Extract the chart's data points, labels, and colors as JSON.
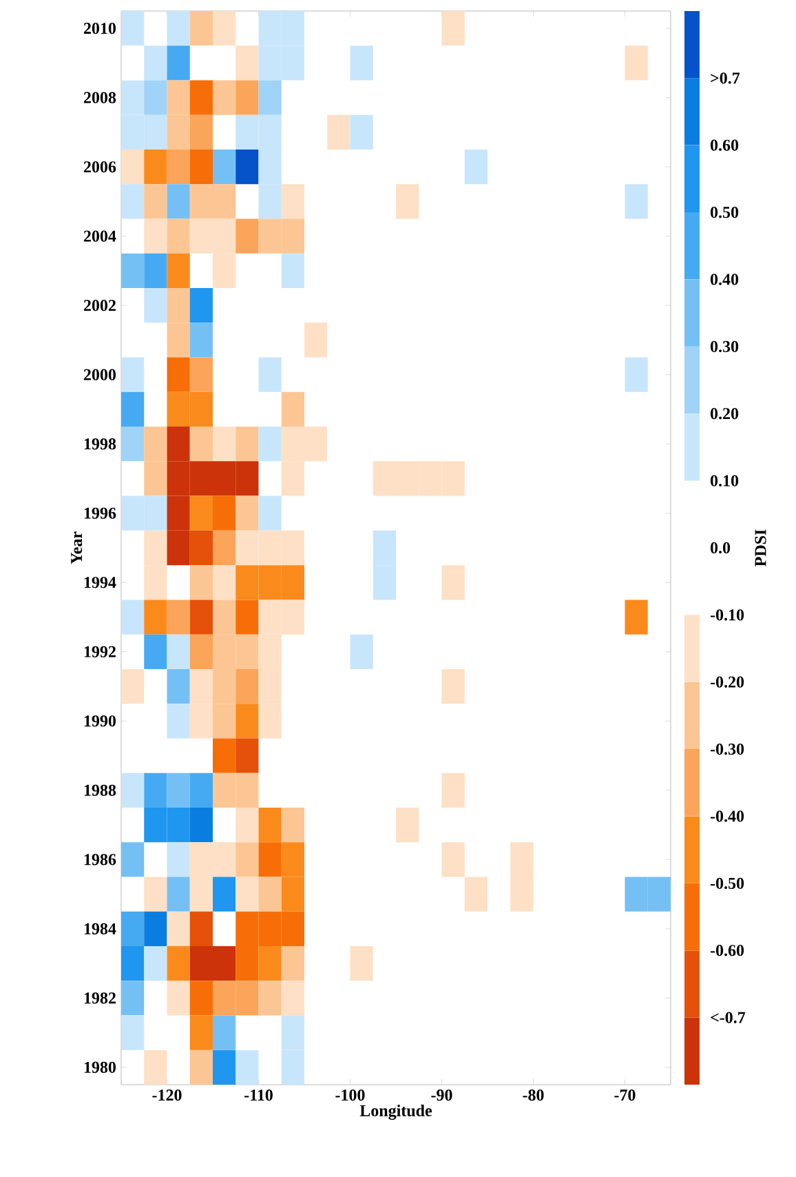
{
  "chart_data": {
    "type": "heatmap",
    "xlabel": "Longitude",
    "ylabel": "Year",
    "clabel": "PDSI",
    "x": [
      -123.75,
      -121.25,
      -118.75,
      -116.25,
      -113.75,
      -111.25,
      -108.75,
      -106.25,
      -103.75,
      -101.25,
      -98.75,
      -96.25,
      -93.75,
      -91.25,
      -88.75,
      -86.25,
      -83.75,
      -81.25,
      -78.75,
      -76.25,
      -73.75,
      -71.25,
      -68.75,
      -66.25
    ],
    "xlim": [
      -125,
      -65
    ],
    "xticks": [
      -120,
      -110,
      -100,
      -90,
      -80,
      -70
    ],
    "y_categories": [
      "2010",
      null,
      "2008",
      null,
      "2006",
      null,
      "2004",
      null,
      "2002",
      null,
      "2000",
      null,
      "1998",
      null,
      "1996",
      null,
      "1994",
      null,
      "1992",
      null,
      "1990",
      null,
      "1988",
      null,
      "1986",
      null,
      "1984",
      null,
      "1982",
      null,
      "1980"
    ],
    "cells": [
      [
        0.15,
        null,
        0.15,
        -0.25,
        -0.15,
        null,
        0.15,
        0.15,
        null,
        null,
        null,
        null,
        null,
        null,
        -0.15,
        null,
        null,
        null,
        null,
        null,
        null,
        null,
        null,
        null
      ],
      [
        null,
        0.15,
        0.45,
        null,
        null,
        -0.15,
        0.15,
        0.15,
        null,
        null,
        0.15,
        null,
        null,
        null,
        null,
        null,
        null,
        null,
        null,
        null,
        null,
        null,
        -0.15,
        null
      ],
      [
        0.15,
        0.25,
        -0.25,
        -0.55,
        -0.25,
        -0.35,
        0.25,
        null,
        null,
        null,
        null,
        null,
        null,
        null,
        null,
        null,
        null,
        null,
        null,
        null,
        null,
        null,
        null,
        null
      ],
      [
        0.15,
        0.15,
        -0.25,
        -0.35,
        null,
        0.15,
        0.15,
        null,
        null,
        -0.15,
        0.15,
        null,
        null,
        null,
        null,
        null,
        null,
        null,
        null,
        null,
        null,
        null,
        null,
        null
      ],
      [
        -0.15,
        -0.45,
        -0.35,
        -0.55,
        0.35,
        0.75,
        0.15,
        null,
        null,
        null,
        null,
        null,
        null,
        null,
        null,
        0.15,
        null,
        null,
        null,
        null,
        null,
        null,
        null,
        null
      ],
      [
        0.15,
        -0.25,
        0.35,
        -0.25,
        -0.25,
        null,
        0.15,
        -0.15,
        null,
        null,
        null,
        null,
        -0.15,
        null,
        null,
        null,
        null,
        null,
        null,
        null,
        null,
        null,
        0.15,
        null
      ],
      [
        null,
        -0.15,
        -0.25,
        -0.15,
        -0.15,
        -0.35,
        -0.25,
        -0.25,
        null,
        null,
        null,
        null,
        null,
        null,
        null,
        null,
        null,
        null,
        null,
        null,
        null,
        null,
        null,
        null
      ],
      [
        0.35,
        0.45,
        -0.45,
        null,
        -0.15,
        null,
        null,
        0.15,
        null,
        null,
        null,
        null,
        null,
        null,
        null,
        null,
        null,
        null,
        null,
        null,
        null,
        null,
        null,
        null
      ],
      [
        null,
        0.15,
        -0.25,
        0.55,
        null,
        null,
        null,
        null,
        null,
        null,
        null,
        null,
        null,
        null,
        null,
        null,
        null,
        null,
        null,
        null,
        null,
        null,
        null,
        null
      ],
      [
        null,
        null,
        -0.25,
        0.35,
        null,
        null,
        null,
        null,
        -0.15,
        null,
        null,
        null,
        null,
        null,
        null,
        null,
        null,
        null,
        null,
        null,
        null,
        null,
        null,
        null
      ],
      [
        0.15,
        null,
        -0.55,
        -0.35,
        null,
        null,
        0.15,
        null,
        null,
        null,
        null,
        null,
        null,
        null,
        null,
        null,
        null,
        null,
        null,
        null,
        null,
        null,
        0.15,
        null
      ],
      [
        0.45,
        null,
        -0.45,
        -0.45,
        null,
        null,
        null,
        -0.25,
        null,
        null,
        null,
        null,
        null,
        null,
        null,
        null,
        null,
        null,
        null,
        null,
        null,
        null,
        null,
        null
      ],
      [
        0.25,
        -0.25,
        -0.75,
        -0.25,
        -0.15,
        -0.25,
        0.15,
        -0.15,
        -0.15,
        null,
        null,
        null,
        null,
        null,
        null,
        null,
        null,
        null,
        null,
        null,
        null,
        null,
        null,
        null
      ],
      [
        null,
        -0.25,
        -0.75,
        -0.75,
        -0.75,
        -0.75,
        null,
        -0.15,
        null,
        null,
        null,
        -0.15,
        -0.15,
        -0.15,
        -0.15,
        null,
        null,
        null,
        null,
        null,
        null,
        null,
        null,
        null
      ],
      [
        0.15,
        0.15,
        -0.75,
        -0.45,
        -0.55,
        -0.25,
        0.15,
        null,
        null,
        null,
        null,
        null,
        null,
        null,
        null,
        null,
        null,
        null,
        null,
        null,
        null,
        null,
        null,
        null
      ],
      [
        null,
        -0.15,
        -0.75,
        -0.65,
        -0.35,
        -0.15,
        -0.15,
        -0.15,
        null,
        null,
        null,
        0.15,
        null,
        null,
        null,
        null,
        null,
        null,
        null,
        null,
        null,
        null,
        null,
        null
      ],
      [
        null,
        -0.15,
        null,
        -0.25,
        -0.15,
        -0.45,
        -0.45,
        -0.45,
        null,
        null,
        null,
        0.15,
        null,
        null,
        -0.15,
        null,
        null,
        null,
        null,
        null,
        null,
        null,
        null,
        null
      ],
      [
        0.15,
        -0.45,
        -0.35,
        -0.65,
        -0.25,
        -0.55,
        -0.15,
        -0.15,
        null,
        null,
        null,
        null,
        null,
        null,
        null,
        null,
        null,
        null,
        null,
        null,
        null,
        null,
        -0.45,
        null
      ],
      [
        null,
        0.45,
        0.15,
        -0.35,
        -0.25,
        -0.25,
        -0.15,
        null,
        null,
        null,
        0.15,
        null,
        null,
        null,
        null,
        null,
        null,
        null,
        null,
        null,
        null,
        null,
        null,
        null
      ],
      [
        -0.15,
        null,
        0.35,
        -0.15,
        -0.25,
        -0.35,
        -0.15,
        null,
        null,
        null,
        null,
        null,
        null,
        null,
        -0.15,
        null,
        null,
        null,
        null,
        null,
        null,
        null,
        null,
        null
      ],
      [
        null,
        null,
        0.15,
        -0.15,
        -0.25,
        -0.45,
        -0.15,
        null,
        null,
        null,
        null,
        null,
        null,
        null,
        null,
        null,
        null,
        null,
        null,
        null,
        null,
        null,
        null,
        null
      ],
      [
        null,
        null,
        null,
        null,
        -0.55,
        -0.65,
        null,
        null,
        null,
        null,
        null,
        null,
        null,
        null,
        null,
        null,
        null,
        null,
        null,
        null,
        null,
        null,
        null,
        null
      ],
      [
        0.15,
        0.45,
        0.35,
        0.45,
        -0.25,
        -0.25,
        null,
        null,
        null,
        null,
        null,
        null,
        null,
        null,
        -0.15,
        null,
        null,
        null,
        null,
        null,
        null,
        null,
        null,
        null
      ],
      [
        null,
        0.55,
        0.55,
        0.65,
        null,
        -0.15,
        -0.45,
        -0.25,
        null,
        null,
        null,
        null,
        -0.15,
        null,
        null,
        null,
        null,
        null,
        null,
        null,
        null,
        null,
        null,
        null
      ],
      [
        0.35,
        null,
        0.15,
        -0.15,
        -0.15,
        -0.25,
        -0.55,
        -0.45,
        null,
        null,
        null,
        null,
        null,
        null,
        -0.15,
        null,
        null,
        -0.15,
        null,
        null,
        null,
        null,
        null,
        null
      ],
      [
        null,
        -0.15,
        0.35,
        -0.15,
        0.55,
        -0.15,
        -0.25,
        -0.45,
        null,
        null,
        null,
        null,
        null,
        null,
        null,
        -0.15,
        null,
        -0.15,
        null,
        null,
        null,
        null,
        0.35,
        0.35
      ],
      [
        0.45,
        0.65,
        -0.15,
        -0.65,
        null,
        -0.55,
        -0.55,
        -0.55,
        null,
        null,
        null,
        null,
        null,
        null,
        null,
        null,
        null,
        null,
        null,
        null,
        null,
        null,
        null,
        null
      ],
      [
        0.55,
        0.15,
        -0.45,
        -0.75,
        -0.75,
        -0.55,
        -0.45,
        -0.25,
        null,
        null,
        -0.15,
        null,
        null,
        null,
        null,
        null,
        null,
        null,
        null,
        null,
        null,
        null,
        null,
        null
      ],
      [
        0.35,
        null,
        -0.15,
        -0.55,
        -0.35,
        -0.35,
        -0.25,
        -0.15,
        null,
        null,
        null,
        null,
        null,
        null,
        null,
        null,
        null,
        null,
        null,
        null,
        null,
        null,
        null,
        null
      ],
      [
        0.15,
        null,
        null,
        -0.45,
        0.35,
        null,
        null,
        0.15,
        null,
        null,
        null,
        null,
        null,
        null,
        null,
        null,
        null,
        null,
        null,
        null,
        null,
        null,
        null,
        null
      ],
      [
        null,
        -0.15,
        null,
        -0.25,
        0.55,
        0.15,
        null,
        0.15,
        null,
        null,
        null,
        null,
        null,
        null,
        null,
        null,
        null,
        null,
        null,
        null,
        null,
        null,
        null,
        null
      ]
    ],
    "clim": [
      -0.8,
      0.8
    ],
    "cticks": [
      {
        "value": -0.7,
        "label": "<-0.7"
      },
      {
        "value": -0.6,
        "label": "-0.60"
      },
      {
        "value": -0.5,
        "label": "-0.50"
      },
      {
        "value": -0.4,
        "label": "-0.40"
      },
      {
        "value": -0.3,
        "label": "-0.30"
      },
      {
        "value": -0.2,
        "label": "-0.20"
      },
      {
        "value": -0.1,
        "label": "-0.10"
      },
      {
        "value": 0,
        "label": "0.0"
      },
      {
        "value": 0.1,
        "label": "0.10"
      },
      {
        "value": 0.2,
        "label": "0.20"
      },
      {
        "value": 0.3,
        "label": "0.30"
      },
      {
        "value": 0.4,
        "label": "0.40"
      },
      {
        "value": 0.5,
        "label": "0.50"
      },
      {
        "value": 0.6,
        "label": "0.60"
      },
      {
        "value": 0.7,
        "label": ">0.7"
      }
    ],
    "colors": [
      "#cc330a",
      "#e5500a",
      "#f76e08",
      "#fb8a1c",
      "#fba55a",
      "#fcc694",
      "#fde0c5",
      "#ffffff",
      "#ffffff",
      "#c8e6fb",
      "#9fd3f7",
      "#74c0f5",
      "#45aaf2",
      "#1f96f0",
      "#0a7de0",
      "#0652c8"
    ]
  }
}
